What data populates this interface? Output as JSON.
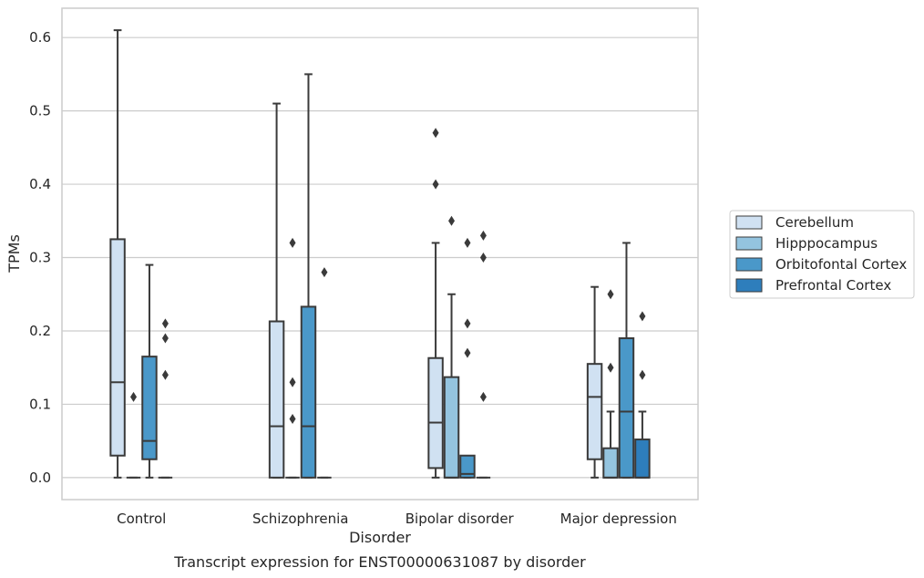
{
  "chart_data": {
    "type": "boxplot",
    "xlabel": "Disorder",
    "ylabel": "TPMs",
    "caption": "Transcript expression for ENST00000631087 by disorder",
    "ylim": [
      -0.03,
      0.64
    ],
    "yticks": [
      "0.0",
      "0.1",
      "0.2",
      "0.3",
      "0.4",
      "0.5",
      "0.6"
    ],
    "ytick_values": [
      0.0,
      0.1,
      0.2,
      0.3,
      0.4,
      0.5,
      0.6
    ],
    "grid": "horizontal",
    "legend_position": "right",
    "categories": [
      "Control",
      "Schizophrenia",
      "Bipolar disorder",
      "Major depression"
    ],
    "series": [
      {
        "name": "Cerebellum",
        "color": "#d0e1f2",
        "boxes": [
          {
            "q1": 0.03,
            "median": 0.13,
            "q3": 0.325,
            "whislo": 0.0,
            "whishi": 0.61,
            "fliers": []
          },
          {
            "q1": 0.0,
            "median": 0.07,
            "q3": 0.213,
            "whislo": 0.0,
            "whishi": 0.51,
            "fliers": []
          },
          {
            "q1": 0.013,
            "median": 0.075,
            "q3": 0.163,
            "whislo": 0.0,
            "whishi": 0.32,
            "fliers": [
              0.4,
              0.47
            ]
          },
          {
            "q1": 0.025,
            "median": 0.11,
            "q3": 0.155,
            "whislo": 0.0,
            "whishi": 0.26,
            "fliers": []
          }
        ]
      },
      {
        "name": "Hipppocampus",
        "color": "#94c4df",
        "boxes": [
          {
            "q1": 0.0,
            "median": 0.0,
            "q3": 0.0,
            "whislo": 0.0,
            "whishi": 0.0,
            "fliers": [
              0.11
            ]
          },
          {
            "q1": 0.0,
            "median": 0.0,
            "q3": 0.0,
            "whislo": 0.0,
            "whishi": 0.0,
            "fliers": [
              0.08,
              0.13,
              0.32
            ]
          },
          {
            "q1": 0.0,
            "median": 0.0,
            "q3": 0.137,
            "whislo": 0.0,
            "whishi": 0.25,
            "fliers": [
              0.35
            ]
          },
          {
            "q1": 0.0,
            "median": 0.0,
            "q3": 0.04,
            "whislo": 0.0,
            "whishi": 0.09,
            "fliers": [
              0.15,
              0.25
            ]
          }
        ]
      },
      {
        "name": "Orbitofontal Cortex",
        "color": "#4a98c9",
        "boxes": [
          {
            "q1": 0.025,
            "median": 0.05,
            "q3": 0.165,
            "whislo": 0.0,
            "whishi": 0.29,
            "fliers": []
          },
          {
            "q1": 0.0,
            "median": 0.07,
            "q3": 0.233,
            "whislo": 0.0,
            "whishi": 0.55,
            "fliers": []
          },
          {
            "q1": 0.0,
            "median": 0.005,
            "q3": 0.03,
            "whislo": 0.0,
            "whishi": 0.03,
            "fliers": [
              0.17,
              0.21,
              0.32
            ]
          },
          {
            "q1": 0.0,
            "median": 0.09,
            "q3": 0.19,
            "whislo": 0.0,
            "whishi": 0.32,
            "fliers": []
          }
        ]
      },
      {
        "name": "Prefrontal Cortex",
        "color": "#2e7ebc",
        "boxes": [
          {
            "q1": 0.0,
            "median": 0.0,
            "q3": 0.0,
            "whislo": 0.0,
            "whishi": 0.0,
            "fliers": [
              0.14,
              0.19,
              0.21
            ]
          },
          {
            "q1": 0.0,
            "median": 0.0,
            "q3": 0.0,
            "whislo": 0.0,
            "whishi": 0.0,
            "fliers": [
              0.28
            ]
          },
          {
            "q1": 0.0,
            "median": 0.0,
            "q3": 0.0,
            "whislo": 0.0,
            "whishi": 0.0,
            "fliers": [
              0.11,
              0.3,
              0.33
            ]
          },
          {
            "q1": 0.0,
            "median": 0.0,
            "q3": 0.052,
            "whislo": 0.0,
            "whishi": 0.09,
            "fliers": [
              0.14,
              0.22
            ]
          }
        ]
      }
    ]
  }
}
